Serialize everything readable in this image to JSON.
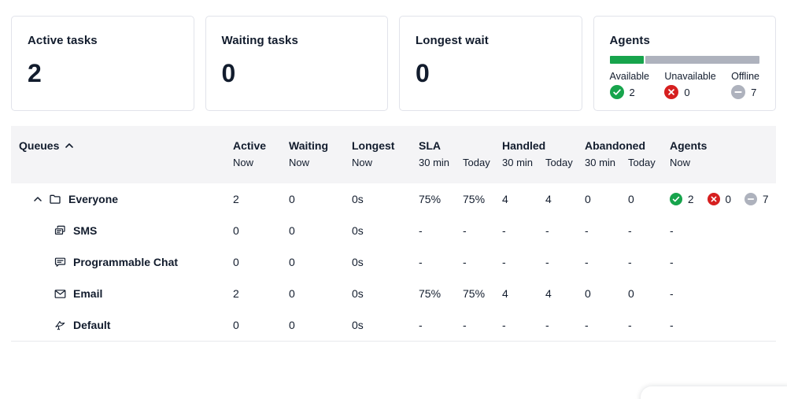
{
  "colors": {
    "text": "#121C2D",
    "card_border": "#E1E3EA",
    "header_bg": "#F4F4F6",
    "available_green": "#17A44C",
    "unavailable_red": "#D61F1F",
    "offline_gray": "#AEB2BD"
  },
  "cards": [
    {
      "title": "Active tasks",
      "value": "2"
    },
    {
      "title": "Waiting tasks",
      "value": "0"
    },
    {
      "title": "Longest wait",
      "value": "0"
    }
  ],
  "agents_card": {
    "title": "Agents",
    "bar": {
      "available_percent": "23%"
    },
    "statuses": [
      {
        "label": "Available",
        "count": "2",
        "icon": "check-circle"
      },
      {
        "label": "Unavailable",
        "count": "0",
        "icon": "x-circle"
      },
      {
        "label": "Offline",
        "count": "7",
        "icon": "minus-circle"
      }
    ]
  },
  "table": {
    "columns": [
      {
        "label": "Queues",
        "sub": "",
        "sort": "asc"
      },
      {
        "label": "Active",
        "sub": "Now"
      },
      {
        "label": "Waiting",
        "sub": "Now"
      },
      {
        "label": "Longest",
        "sub": "Now"
      },
      {
        "label": "SLA",
        "sub": "30 min"
      },
      {
        "label": "",
        "sub": "Today"
      },
      {
        "label": "Handled",
        "sub": "30 min"
      },
      {
        "label": "",
        "sub": "Today"
      },
      {
        "label": "Abandoned",
        "sub": "30 min"
      },
      {
        "label": "",
        "sub": "Today"
      },
      {
        "label": "Agents",
        "sub": "Now"
      }
    ],
    "rows": [
      {
        "name": "Everyone",
        "icon": "folder",
        "caret": true,
        "values": [
          "2",
          "0",
          "0s",
          "75%",
          "75%",
          "4",
          "4",
          "0",
          "0"
        ],
        "agents": {
          "available": "2",
          "unavailable": "0",
          "offline": "7"
        }
      },
      {
        "name": "SMS",
        "icon": "sms",
        "caret": false,
        "values": [
          "0",
          "0",
          "0s",
          "-",
          "-",
          "-",
          "-",
          "-",
          "-"
        ],
        "agents": "-"
      },
      {
        "name": "Programmable Chat",
        "icon": "chat",
        "caret": false,
        "values": [
          "0",
          "0",
          "0s",
          "-",
          "-",
          "-",
          "-",
          "-",
          "-"
        ],
        "agents": "-"
      },
      {
        "name": "Email",
        "icon": "email",
        "caret": false,
        "values": [
          "2",
          "0",
          "0s",
          "75%",
          "75%",
          "4",
          "4",
          "0",
          "0"
        ],
        "agents": "-"
      },
      {
        "name": "Default",
        "icon": "bird",
        "caret": false,
        "values": [
          "0",
          "0",
          "0s",
          "-",
          "-",
          "-",
          "-",
          "-",
          "-"
        ],
        "agents": "-"
      }
    ]
  }
}
